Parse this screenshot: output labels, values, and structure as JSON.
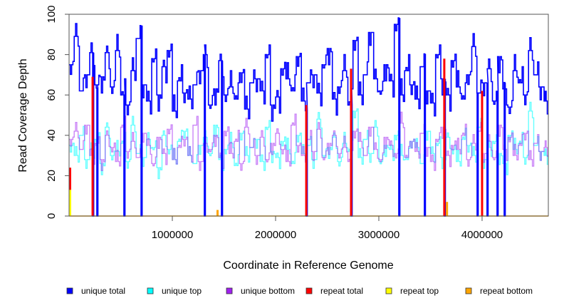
{
  "chart_data": {
    "type": "line",
    "title": "",
    "xlabel": "Coordinate in Reference Genome",
    "ylabel": "Read Coverage Depth",
    "xlim": [
      0,
      4641652
    ],
    "ylim": [
      0,
      100
    ],
    "x_ticks": [
      1000000,
      2000000,
      3000000,
      4000000
    ],
    "x_tick_labels": [
      "1000000",
      "2000000",
      "3000000",
      "4000000"
    ],
    "y_ticks": [
      0,
      20,
      40,
      60,
      80,
      100
    ],
    "y_tick_labels": [
      "0",
      "20",
      "40",
      "60",
      "80",
      "100"
    ],
    "x_start": 0,
    "x_step": 50000,
    "series": [
      {
        "name": "unique total",
        "color": "#0000FF",
        "values": [
          75,
          89,
          62,
          70,
          81,
          65,
          69,
          81,
          64,
          82,
          60,
          55,
          72,
          88,
          65,
          57,
          78,
          60,
          74,
          82,
          52,
          67,
          61,
          58,
          65,
          72,
          80,
          55,
          63,
          77,
          60,
          64,
          58,
          71,
          53,
          66,
          68,
          62,
          80,
          55,
          59,
          73,
          68,
          62,
          79,
          57,
          66,
          70,
          61,
          75,
          83,
          58,
          64,
          72,
          55,
          87,
          60,
          70,
          91,
          68,
          62,
          75,
          67,
          95,
          60,
          72,
          65,
          58,
          74,
          62,
          56,
          80,
          68,
          60,
          77,
          64,
          58,
          70,
          84,
          61,
          66,
          73,
          57,
          79,
          63,
          54,
          72,
          66,
          60,
          82,
          70,
          64,
          57
        ]
      },
      {
        "name": "unique top",
        "color": "#00FFFF",
        "values": [
          35,
          30,
          40,
          28,
          33,
          38,
          26,
          44,
          30,
          32,
          36,
          27,
          45,
          31,
          29,
          38,
          34,
          24,
          40,
          33,
          28,
          37,
          42,
          30,
          26,
          35,
          39,
          31,
          45,
          28,
          33,
          36,
          25,
          41,
          30,
          34,
          38,
          27,
          44,
          32,
          29,
          37,
          33,
          26,
          40,
          31,
          35,
          28,
          48,
          30,
          34,
          39,
          27,
          36,
          32,
          52,
          29,
          38,
          31,
          44,
          27,
          35,
          33,
          40,
          30,
          28,
          37,
          34,
          26,
          42,
          31,
          36,
          29,
          39,
          33,
          27,
          38,
          35,
          30,
          44,
          28,
          34,
          37,
          31,
          26,
          40,
          33,
          36,
          29,
          52,
          35,
          32,
          30
        ]
      },
      {
        "name": "unique bottom",
        "color": "#A020F0",
        "values": [
          38,
          42,
          33,
          45,
          30,
          36,
          28,
          40,
          34,
          27,
          44,
          32,
          37,
          29,
          41,
          35,
          26,
          39,
          31,
          43,
          28,
          34,
          38,
          30,
          45,
          27,
          36,
          33,
          40,
          29,
          42,
          31,
          37,
          26,
          44,
          34,
          30,
          39,
          28,
          36,
          41,
          33,
          27,
          45,
          35,
          30,
          38,
          32,
          43,
          29,
          36,
          40,
          31,
          34,
          27,
          42,
          37,
          30,
          44,
          33,
          28,
          39,
          35,
          31,
          46,
          29,
          37,
          32,
          41,
          34,
          27,
          38,
          44,
          30,
          35,
          33,
          40,
          28,
          36,
          42,
          31,
          37,
          29,
          45,
          33,
          39,
          30,
          35,
          41,
          28,
          36,
          32,
          34
        ]
      },
      {
        "name": "repeat total",
        "color": "#FF0000",
        "spikes": [
          [
            10000,
            24
          ],
          [
            228000,
            69
          ],
          [
            2297000,
            55
          ],
          [
            2731000,
            73
          ],
          [
            3634000,
            78
          ],
          [
            4000000,
            62
          ]
        ]
      },
      {
        "name": "repeat top",
        "color": "#FFFF00",
        "spikes": [
          [
            10000,
            13
          ]
        ]
      },
      {
        "name": "repeat bottom",
        "color": "#FFA500",
        "spikes": [
          [
            10000,
            12
          ],
          [
            1438000,
            3
          ],
          [
            3660000,
            7
          ]
        ]
      }
    ],
    "dropouts": [
      228000,
      269000,
      531000,
      697000,
      1310000,
      1476000,
      2297000,
      2731000,
      3193000,
      3441000,
      3634000,
      3952000,
      4048000,
      4145000,
      4214000
    ],
    "grid": false,
    "legend_position": "bottom"
  }
}
